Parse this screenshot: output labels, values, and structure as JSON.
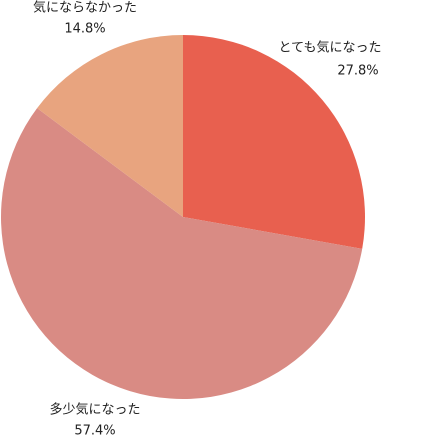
{
  "chart_data": {
    "type": "pie",
    "categories": [
      "とても気になった",
      "多少気になった",
      "気にならなかった"
    ],
    "values": [
      27.8,
      57.4,
      14.8
    ],
    "value_labels": [
      "27.8%",
      "57.4%",
      "14.8%"
    ],
    "colors": [
      "#e8604f",
      "#d98b84",
      "#e8a47f"
    ]
  }
}
